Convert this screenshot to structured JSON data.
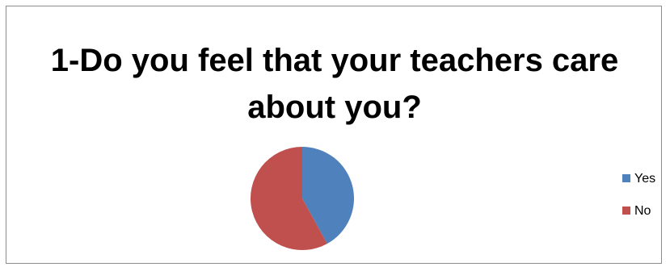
{
  "chart_data": {
    "type": "pie",
    "title": "1-Do you feel that your teachers care about you?",
    "categories": [
      "Yes",
      "No"
    ],
    "values": [
      42,
      58
    ],
    "colors": [
      "#4f81bd",
      "#c0504d"
    ],
    "legend_position": "right"
  }
}
